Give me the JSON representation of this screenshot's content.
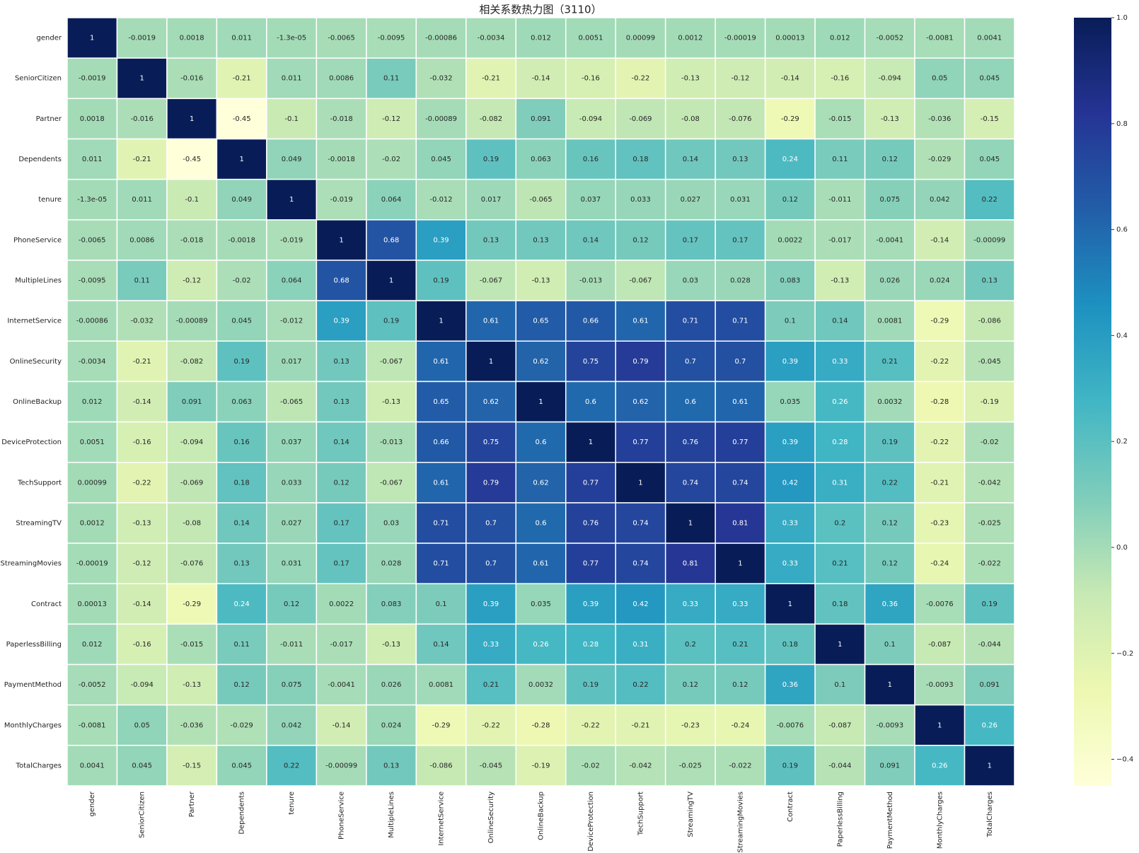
{
  "chart_data": {
    "type": "heatmap",
    "title": "相关系数热力图（3110）",
    "labels": [
      "gender",
      "SeniorCitizen",
      "Partner",
      "Dependents",
      "tenure",
      "PhoneService",
      "MultipleLines",
      "InternetService",
      "OnlineSecurity",
      "OnlineBackup",
      "DeviceProtection",
      "TechSupport",
      "StreamingTV",
      "StreamingMovies",
      "Contract",
      "PaperlessBilling",
      "PaymentMethod",
      "MonthlyCharges",
      "TotalCharges"
    ],
    "matrix": [
      [
        1,
        -0.0019,
        0.0018,
        0.011,
        {
          "value": -1.3e-05,
          "label": "-1.3e-05"
        },
        -0.0065,
        -0.0095,
        -0.00086,
        -0.0034,
        0.012,
        0.0051,
        0.00099,
        0.0012,
        -0.00019,
        0.00013,
        0.012,
        -0.0052,
        -0.0081,
        0.0041
      ],
      [
        -0.0019,
        1,
        -0.016,
        -0.21,
        0.011,
        0.0086,
        0.11,
        -0.032,
        -0.21,
        -0.14,
        -0.16,
        -0.22,
        -0.13,
        -0.12,
        -0.14,
        -0.16,
        -0.094,
        0.05,
        0.045
      ],
      [
        0.0018,
        -0.016,
        1,
        -0.45,
        -0.1,
        -0.018,
        -0.12,
        -0.00089,
        -0.082,
        0.091,
        -0.094,
        -0.069,
        -0.08,
        -0.076,
        -0.29,
        -0.015,
        -0.13,
        -0.036,
        -0.15
      ],
      [
        0.011,
        -0.21,
        -0.45,
        1,
        0.049,
        -0.0018,
        -0.02,
        0.045,
        0.19,
        0.063,
        0.16,
        0.18,
        0.14,
        0.13,
        0.24,
        0.11,
        0.12,
        -0.029,
        0.045
      ],
      [
        {
          "value": -1.3e-05,
          "label": "-1.3e-05"
        },
        0.011,
        -0.1,
        0.049,
        1,
        -0.019,
        0.064,
        -0.012,
        0.017,
        -0.065,
        0.037,
        0.033,
        0.027,
        0.031,
        0.12,
        -0.011,
        0.075,
        0.042,
        0.22
      ],
      [
        -0.0065,
        0.0086,
        -0.018,
        -0.0018,
        -0.019,
        1,
        0.68,
        0.39,
        0.13,
        0.13,
        0.14,
        0.12,
        0.17,
        0.17,
        0.0022,
        -0.017,
        -0.0041,
        -0.14,
        -0.00099
      ],
      [
        -0.0095,
        0.11,
        -0.12,
        -0.02,
        0.064,
        0.68,
        1,
        0.19,
        -0.067,
        -0.13,
        -0.013,
        -0.067,
        0.03,
        0.028,
        0.083,
        -0.13,
        0.026,
        0.024,
        0.13
      ],
      [
        -0.00086,
        -0.032,
        -0.00089,
        0.045,
        -0.012,
        0.39,
        0.19,
        1,
        0.61,
        0.65,
        0.66,
        0.61,
        0.71,
        0.71,
        0.1,
        0.14,
        0.0081,
        -0.29,
        -0.086
      ],
      [
        -0.0034,
        -0.21,
        -0.082,
        0.19,
        0.017,
        0.13,
        -0.067,
        0.61,
        1,
        0.62,
        0.75,
        0.79,
        0.7,
        0.7,
        0.39,
        0.33,
        0.21,
        -0.22,
        -0.045
      ],
      [
        0.012,
        -0.14,
        0.091,
        0.063,
        -0.065,
        0.13,
        -0.13,
        0.65,
        0.62,
        1,
        0.6,
        0.62,
        0.6,
        0.61,
        0.035,
        0.26,
        0.0032,
        -0.28,
        -0.19
      ],
      [
        0.0051,
        -0.16,
        -0.094,
        0.16,
        0.037,
        0.14,
        -0.013,
        0.66,
        0.75,
        0.6,
        1,
        0.77,
        0.76,
        0.77,
        0.39,
        0.28,
        0.19,
        -0.22,
        -0.02
      ],
      [
        0.00099,
        -0.22,
        -0.069,
        0.18,
        0.033,
        0.12,
        -0.067,
        0.61,
        0.79,
        0.62,
        0.77,
        1,
        0.74,
        0.74,
        0.42,
        0.31,
        0.22,
        -0.21,
        -0.042
      ],
      [
        0.0012,
        -0.13,
        -0.08,
        0.14,
        0.027,
        0.17,
        0.03,
        0.71,
        0.7,
        0.6,
        0.76,
        0.74,
        1,
        0.81,
        0.33,
        0.2,
        0.12,
        -0.23,
        -0.025
      ],
      [
        -0.00019,
        -0.12,
        -0.076,
        0.13,
        0.031,
        0.17,
        0.028,
        0.71,
        0.7,
        0.61,
        0.77,
        0.74,
        0.81,
        1,
        0.33,
        0.21,
        0.12,
        -0.24,
        -0.022
      ],
      [
        0.00013,
        -0.14,
        -0.29,
        0.24,
        0.12,
        0.0022,
        0.083,
        0.1,
        0.39,
        0.035,
        0.39,
        0.42,
        0.33,
        0.33,
        1,
        0.18,
        0.36,
        -0.0076,
        0.19
      ],
      [
        0.012,
        -0.16,
        -0.015,
        0.11,
        -0.011,
        -0.017,
        -0.13,
        0.14,
        0.33,
        0.26,
        0.28,
        0.31,
        0.2,
        0.21,
        0.18,
        1,
        0.1,
        -0.087,
        -0.044
      ],
      [
        -0.0052,
        -0.094,
        -0.13,
        0.12,
        0.075,
        -0.0041,
        0.026,
        0.0081,
        0.21,
        0.0032,
        0.19,
        0.22,
        0.12,
        0.12,
        0.36,
        0.1,
        1,
        -0.0093,
        0.091
      ],
      [
        -0.0081,
        0.05,
        -0.036,
        -0.029,
        0.042,
        -0.14,
        0.024,
        -0.29,
        -0.22,
        -0.28,
        -0.22,
        -0.21,
        -0.23,
        -0.24,
        -0.0076,
        -0.087,
        -0.0093,
        1,
        0.26
      ],
      [
        0.0041,
        0.045,
        -0.15,
        0.045,
        0.22,
        -0.00099,
        0.13,
        -0.086,
        -0.045,
        -0.19,
        -0.02,
        -0.042,
        -0.025,
        -0.022,
        0.19,
        -0.044,
        0.091,
        0.26,
        1
      ]
    ],
    "clim": [
      -0.45,
      1
    ],
    "colors": [
      "#ffffd9",
      "#edf8b1",
      "#c7e9b4",
      "#7fcdbb",
      "#41b6c4",
      "#1d91c0",
      "#225ea8",
      "#253494",
      "#081d58"
    ],
    "cticks": [
      {
        "value": 1,
        "label": "1.0"
      },
      {
        "value": 0.8,
        "label": "0.8"
      },
      {
        "value": 0.6,
        "label": "0.6"
      },
      {
        "value": 0.4,
        "label": "0.4"
      },
      {
        "value": 0.2,
        "label": "0.2"
      },
      {
        "value": 0,
        "label": "0.0"
      },
      {
        "value": -0.2,
        "label": "−0.2"
      },
      {
        "value": -0.4,
        "label": "−0.4"
      }
    ]
  }
}
